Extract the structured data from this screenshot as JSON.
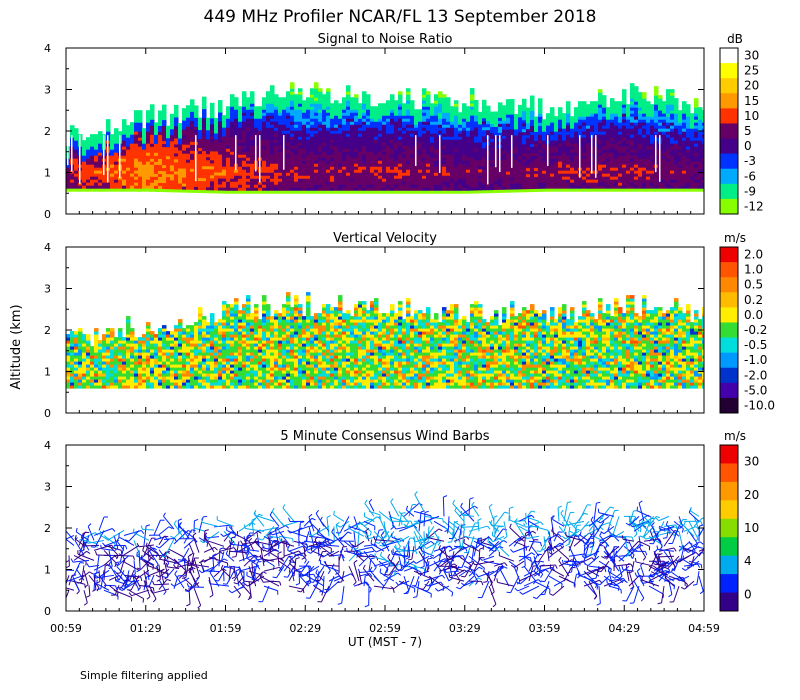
{
  "title": "449 MHz Profiler NCAR/FL 13 September 2018",
  "ylabel": "Altitude (km)",
  "xlabel": "UT  (MST - 7)",
  "footnote": "Simple filtering applied",
  "x_ticks": [
    "00:59",
    "01:29",
    "01:59",
    "02:29",
    "02:59",
    "03:29",
    "03:59",
    "04:29",
    "04:59"
  ],
  "y_ticks": [
    "0",
    "1",
    "2",
    "3",
    "4"
  ],
  "chart_data": [
    {
      "type": "heatmap",
      "title": "Signal to Noise Ratio",
      "xlabel": "UT  (MST - 7)",
      "ylabel": "Altitude (km)",
      "ylim": [
        0,
        4
      ],
      "colorbar": {
        "unit": "dB",
        "tick_labels": [
          "30",
          "25",
          "20",
          "15",
          "10",
          "5",
          "0",
          "-3",
          "-6",
          "-9",
          "-12"
        ],
        "colors": [
          "#ffffff",
          "#ffff00",
          "#ffcc00",
          "#ff9900",
          "#ff3300",
          "#660066",
          "#440088",
          "#0033ff",
          "#00aaff",
          "#00ee88",
          "#88ff00"
        ]
      },
      "profile_by_hour": {
        "times": [
          "00:59",
          "01:29",
          "01:59",
          "02:29",
          "02:59",
          "03:29",
          "03:59",
          "04:29",
          "04:59"
        ],
        "top_km": [
          1.9,
          2.3,
          2.6,
          2.9,
          2.8,
          2.7,
          2.5,
          2.9,
          2.6
        ],
        "base_km": [
          0.55,
          0.55,
          0.5,
          0.5,
          0.5,
          0.5,
          0.55,
          0.55,
          0.55
        ],
        "peak_snr_db": [
          14,
          20,
          16,
          12,
          13,
          11,
          12,
          13,
          10
        ]
      }
    },
    {
      "type": "heatmap",
      "title": "Vertical Velocity",
      "ylim": [
        0,
        4
      ],
      "colorbar": {
        "unit": "m/s",
        "tick_labels": [
          "2.0",
          "1.0",
          "0.5",
          "0.2",
          "0.0",
          "-0.2",
          "-0.5",
          "-1.0",
          "-2.0",
          "-5.0",
          "-10.0"
        ],
        "colors": [
          "#ee0000",
          "#ff5500",
          "#ff8800",
          "#ffbb00",
          "#ffee00",
          "#33dd33",
          "#00dddd",
          "#0099ff",
          "#0033cc",
          "#4400aa",
          "#220033"
        ]
      },
      "profile_by_hour": {
        "times": [
          "00:59",
          "01:29",
          "01:59",
          "02:29",
          "02:59",
          "03:29",
          "03:59",
          "04:29",
          "04:59"
        ],
        "top_km": [
          1.7,
          2.1,
          2.5,
          2.6,
          2.5,
          2.4,
          2.3,
          2.6,
          2.4
        ],
        "base_km": [
          0.6,
          0.6,
          0.6,
          0.6,
          0.6,
          0.6,
          0.6,
          0.6,
          0.6
        ]
      }
    },
    {
      "type": "scatter",
      "title": "5 Minute Consensus Wind Barbs",
      "ylim": [
        0,
        4
      ],
      "colorbar": {
        "unit": "m/s",
        "tick_labels": [
          "30",
          "20",
          "10",
          "4",
          "0"
        ],
        "colors": [
          "#ee0000",
          "#ff5500",
          "#ff9900",
          "#ffcc00",
          "#88dd00",
          "#00cc44",
          "#00aaee",
          "#0022ff",
          "#330088"
        ]
      },
      "profile_by_hour": {
        "times": [
          "00:59",
          "01:29",
          "01:59",
          "02:29",
          "02:59",
          "03:29",
          "03:59",
          "04:29",
          "04:59"
        ],
        "top_km": [
          1.9,
          2.0,
          2.1,
          2.2,
          2.5,
          2.3,
          2.2,
          2.4,
          2.3
        ],
        "base_km": [
          0.5,
          0.5,
          0.6,
          0.6,
          0.6,
          0.6,
          0.6,
          0.6,
          0.6
        ],
        "speed_ms": [
          3,
          3,
          3,
          4,
          6,
          5,
          5,
          5,
          4
        ]
      }
    }
  ]
}
